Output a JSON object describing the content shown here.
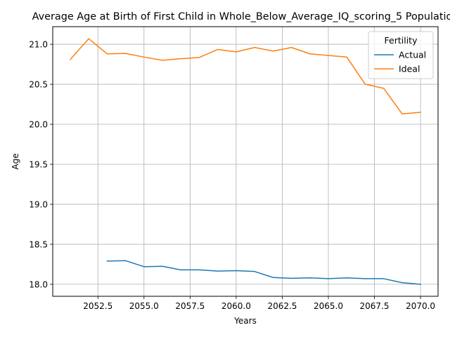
{
  "chart_data": {
    "type": "line",
    "title": "Average Age at Birth of First Child in Whole_Below_Average_IQ_scoring_5 Population",
    "xlabel": "Years",
    "ylabel": "Age",
    "xlim": [
      2050.05,
      2070.95
    ],
    "ylim": [
      17.85,
      21.22
    ],
    "xticks": [
      2052.5,
      2055.0,
      2057.5,
      2060.0,
      2062.5,
      2065.0,
      2067.5,
      2070.0
    ],
    "xtick_labels": [
      "2052.5",
      "2055.0",
      "2057.5",
      "2060.0",
      "2062.5",
      "2065.0",
      "2067.5",
      "2070.0"
    ],
    "yticks": [
      18.0,
      18.5,
      19.0,
      19.5,
      20.0,
      20.5,
      21.0
    ],
    "ytick_labels": [
      "18.0",
      "18.5",
      "19.0",
      "19.5",
      "20.0",
      "20.5",
      "21.0"
    ],
    "grid": true,
    "legend": {
      "title": "Fertility",
      "position": "top-right"
    },
    "series": [
      {
        "name": "Actual",
        "color": "#1f77b4",
        "x": [
          2053,
          2054,
          2055,
          2056,
          2057,
          2058,
          2059,
          2060,
          2061,
          2062,
          2063,
          2064,
          2065,
          2066,
          2067,
          2068,
          2069,
          2070
        ],
        "values": [
          18.29,
          18.295,
          18.22,
          18.225,
          18.18,
          18.18,
          18.165,
          18.17,
          18.16,
          18.085,
          18.075,
          18.08,
          18.07,
          18.08,
          18.07,
          18.07,
          18.02,
          18.0
        ]
      },
      {
        "name": "Ideal",
        "color": "#ff7f0e",
        "x": [
          2051,
          2052,
          2053,
          2054,
          2055,
          2056,
          2057,
          2058,
          2059,
          2060,
          2061,
          2062,
          2063,
          2064,
          2065,
          2066,
          2067,
          2068,
          2069,
          2070
        ],
        "values": [
          20.81,
          21.07,
          20.88,
          20.885,
          20.84,
          20.8,
          20.82,
          20.835,
          20.935,
          20.905,
          20.96,
          20.915,
          20.96,
          20.88,
          20.86,
          20.84,
          20.5,
          20.45,
          20.13,
          20.15
        ]
      }
    ]
  }
}
